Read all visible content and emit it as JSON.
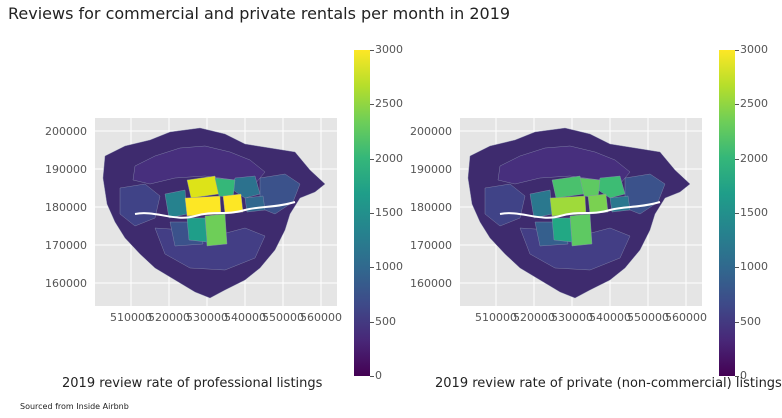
{
  "title": "Reviews for commercial and private rentals per month in 2019",
  "source": "Sourced from Inside Airbnb",
  "colormap": "viridis",
  "colors": {
    "background": "#e5e5e5",
    "low": "#440154",
    "mid": "#21918c",
    "high": "#fde725",
    "river": "#ffffff"
  },
  "panels": [
    {
      "caption": "2019 review rate of professional listings",
      "yticks": [
        "200000",
        "190000",
        "180000",
        "170000",
        "160000"
      ],
      "xticks": [
        "510000",
        "520000",
        "530000",
        "540000",
        "550000",
        "560000"
      ],
      "colorbar": {
        "min": 0,
        "max": 3000,
        "ticks": [
          "3000",
          "2500",
          "2000",
          "1500",
          "1000",
          "500",
          "0"
        ]
      },
      "central_levels": {
        "westminster": 3000,
        "city": 3000,
        "camden": 2700,
        "islington": 1900,
        "southwark": 2200,
        "lambeth": 1700,
        "kensington": 1500,
        "hackney": 1300,
        "tower_hamlets": 1200,
        "wandsworth": 900
      }
    },
    {
      "caption": "2019 review rate of private (non-commercial) listings",
      "yticks": [
        "200000",
        "190000",
        "180000",
        "170000",
        "160000"
      ],
      "xticks": [
        "510000",
        "520000",
        "530000",
        "540000",
        "550000",
        "560000"
      ],
      "colorbar": {
        "min": 0,
        "max": 3000,
        "ticks": [
          "3000",
          "2500",
          "2000",
          "1500",
          "1000",
          "500",
          "0"
        ]
      },
      "central_levels": {
        "westminster": 2400,
        "city": 2300,
        "camden": 2200,
        "islington": 2300,
        "southwark": 2100,
        "lambeth": 1900,
        "kensington": 1600,
        "hackney": 2000,
        "tower_hamlets": 1800,
        "wandsworth": 1300
      }
    }
  ]
}
